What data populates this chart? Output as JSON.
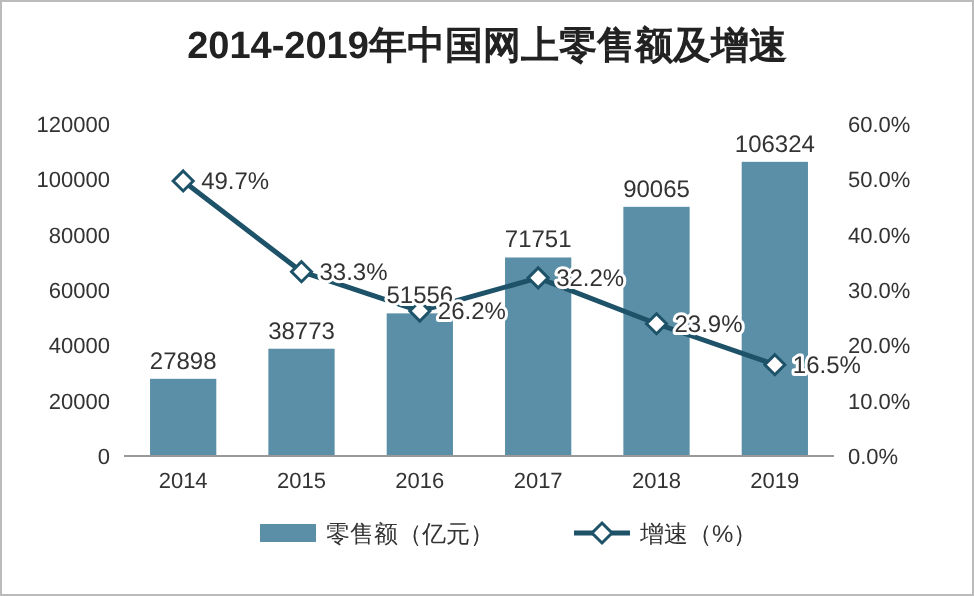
{
  "chart_data": {
    "type": "bar",
    "title": "2014-2019年中国网上零售额及增速",
    "categories": [
      "2014",
      "2015",
      "2016",
      "2017",
      "2018",
      "2019"
    ],
    "series": [
      {
        "name": "零售额（亿元）",
        "color": "#5b8fa8",
        "values": [
          27898,
          38773,
          51556,
          71751,
          90065,
          106324
        ]
      },
      {
        "name": "增速（%）",
        "type": "line",
        "axis": "y2",
        "color": "#1d5268",
        "values": [
          49.7,
          33.3,
          26.2,
          32.2,
          23.9,
          16.5
        ],
        "value_labels": [
          "49.7%",
          "33.3%",
          "26.2%",
          "32.2%",
          "23.9%",
          "16.5%"
        ]
      }
    ],
    "ylim": [
      0,
      120000
    ],
    "yticks": [
      0,
      20000,
      40000,
      60000,
      80000,
      100000,
      120000
    ],
    "y2lim": [
      0,
      60
    ],
    "y2ticks": [
      {
        "value": 0,
        "label": "0.0%"
      },
      {
        "value": 10,
        "label": "10.0%"
      },
      {
        "value": 20,
        "label": "20.0%"
      },
      {
        "value": 30,
        "label": "30.0%"
      },
      {
        "value": 40,
        "label": "40.0%"
      },
      {
        "value": 50,
        "label": "50.0%"
      },
      {
        "value": 60,
        "label": "60.0%"
      }
    ],
    "data_labels": true,
    "marker": "diamond",
    "legend": "bottom"
  }
}
